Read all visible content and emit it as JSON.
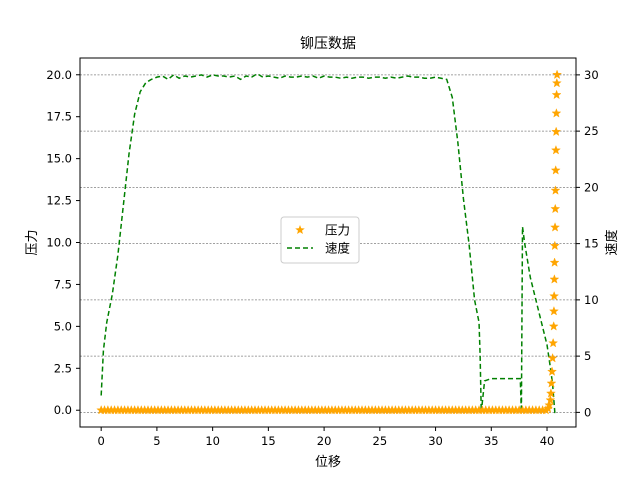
{
  "chart_data": {
    "type": "line",
    "title": "铆压数据",
    "xlabel": "位移",
    "ylabel": "压力",
    "y2label": "速度",
    "xlim": [
      -1.9,
      42.6
    ],
    "ylim": [
      -1.0,
      21.0
    ],
    "y2lim": [
      -1.3,
      31.5
    ],
    "xticks": [
      0,
      5,
      10,
      15,
      20,
      25,
      30,
      35,
      40
    ],
    "xtick_labels": [
      "0",
      "5",
      "10",
      "15",
      "20",
      "25",
      "30",
      "35",
      "40"
    ],
    "yticks": [
      0.0,
      2.5,
      5.0,
      7.5,
      10.0,
      12.5,
      15.0,
      17.5,
      20.0
    ],
    "ytick_labels": [
      "0.0",
      "2.5",
      "5.0",
      "7.5",
      "10.0",
      "12.5",
      "15.0",
      "17.5",
      "20.0"
    ],
    "y2ticks": [
      0,
      5,
      10,
      15,
      20,
      25,
      30
    ],
    "y2tick_labels": [
      "0",
      "5",
      "10",
      "15",
      "20",
      "25",
      "30"
    ],
    "grid": "horizontal-dashed-gray",
    "legend_position": "center",
    "series": [
      {
        "name": "压力",
        "axis": "left",
        "style": "star-markers",
        "color": "#FFA500",
        "x": [
          0,
          0.3,
          0.6,
          0.9,
          1.2,
          1.5,
          1.8,
          2.1,
          2.4,
          2.7,
          3.0,
          3.3,
          3.6,
          3.9,
          4.2,
          4.5,
          4.8,
          5.1,
          5.4,
          5.7,
          6.0,
          6.3,
          6.6,
          6.9,
          7.2,
          7.5,
          7.8,
          8.1,
          8.4,
          8.7,
          9.0,
          9.3,
          9.6,
          9.9,
          10.2,
          10.5,
          10.8,
          11.1,
          11.4,
          11.7,
          12.0,
          12.3,
          12.6,
          12.9,
          13.2,
          13.5,
          13.8,
          14.1,
          14.4,
          14.7,
          15.0,
          15.3,
          15.6,
          15.9,
          16.2,
          16.5,
          16.8,
          17.1,
          17.4,
          17.7,
          18.0,
          18.3,
          18.6,
          18.9,
          19.2,
          19.5,
          19.8,
          20.1,
          20.4,
          20.7,
          21.0,
          21.3,
          21.6,
          21.9,
          22.2,
          22.5,
          22.8,
          23.1,
          23.4,
          23.7,
          24.0,
          24.3,
          24.6,
          24.9,
          25.2,
          25.5,
          25.8,
          26.1,
          26.4,
          26.7,
          27.0,
          27.3,
          27.6,
          27.9,
          28.2,
          28.5,
          28.8,
          29.1,
          29.4,
          29.7,
          30.0,
          30.3,
          30.6,
          30.9,
          31.2,
          31.5,
          31.8,
          32.1,
          32.4,
          32.7,
          33.0,
          33.3,
          33.6,
          33.9,
          34.2,
          34.5,
          34.8,
          35.1,
          35.4,
          35.7,
          36.0,
          36.3,
          36.6,
          36.9,
          37.2,
          37.5,
          37.8,
          38.1,
          38.4,
          38.7,
          39.0,
          39.3,
          39.6,
          39.9,
          40.1,
          40.2,
          40.3,
          40.35,
          40.4,
          40.45,
          40.5,
          40.55,
          40.6,
          40.62,
          40.64,
          40.66,
          40.68,
          40.7,
          40.72,
          40.74,
          40.76,
          40.78,
          40.8,
          40.82,
          40.84,
          40.86,
          40.88,
          40.9
        ],
        "values": [
          0,
          0,
          0,
          0,
          0,
          0,
          0,
          0,
          0,
          0,
          0,
          0,
          0,
          0,
          0,
          0,
          0,
          0,
          0,
          0,
          0,
          0,
          0,
          0,
          0,
          0,
          0,
          0,
          0,
          0,
          0,
          0,
          0,
          0,
          0,
          0,
          0,
          0,
          0,
          0,
          0,
          0,
          0,
          0,
          0,
          0,
          0,
          0,
          0,
          0,
          0,
          0,
          0,
          0,
          0,
          0,
          0,
          0,
          0,
          0,
          0,
          0,
          0,
          0,
          0,
          0,
          0,
          0,
          0,
          0,
          0,
          0,
          0,
          0,
          0,
          0,
          0,
          0,
          0,
          0,
          0,
          0,
          0,
          0,
          0,
          0,
          0,
          0,
          0,
          0,
          0,
          0,
          0,
          0,
          0,
          0,
          0,
          0,
          0,
          0,
          0,
          0,
          0,
          0,
          0,
          0,
          0,
          0,
          0,
          0,
          0,
          0,
          0,
          0,
          0,
          0,
          0,
          0,
          0,
          0,
          0,
          0,
          0,
          0,
          0,
          0,
          0,
          0,
          0,
          0,
          0,
          0,
          0,
          0,
          0.1,
          0.3,
          0.6,
          1.0,
          1.6,
          2.3,
          3.1,
          4.0,
          5.0,
          5.9,
          6.8,
          7.8,
          8.8,
          9.8,
          10.9,
          12.0,
          13.1,
          14.3,
          15.5,
          16.6,
          17.7,
          18.8,
          19.5,
          20.0
        ]
      },
      {
        "name": "速度",
        "axis": "right",
        "style": "dashed-line",
        "color": "#008000",
        "x": [
          0,
          0.2,
          0.5,
          1.0,
          1.5,
          2.0,
          2.5,
          3.0,
          3.5,
          4.0,
          4.5,
          5.0,
          5.5,
          6.0,
          6.5,
          7.0,
          7.5,
          8.0,
          8.5,
          9.0,
          9.5,
          10.0,
          10.5,
          11.0,
          11.5,
          12.0,
          12.5,
          13.0,
          13.5,
          14.0,
          14.5,
          15.0,
          15.5,
          16.0,
          16.5,
          17.0,
          17.5,
          18.0,
          18.5,
          19.0,
          19.5,
          20.0,
          20.5,
          21.0,
          21.5,
          22.0,
          22.5,
          23.0,
          23.5,
          24.0,
          24.5,
          25.0,
          25.5,
          26.0,
          26.5,
          27.0,
          27.5,
          28.0,
          28.5,
          29.0,
          29.5,
          30.0,
          30.5,
          31.0,
          31.5,
          32.0,
          32.5,
          33.0,
          33.5,
          33.9,
          34.0,
          34.1,
          34.4,
          35.0,
          36.0,
          37.0,
          37.6,
          37.7,
          37.8,
          38.0,
          38.5,
          39.0,
          39.5,
          40.0,
          40.3,
          40.5,
          40.7,
          40.8
        ],
        "values": [
          1.5,
          5.5,
          8.0,
          10.5,
          14.0,
          18.5,
          23.0,
          26.5,
          28.5,
          29.3,
          29.6,
          29.8,
          29.9,
          29.6,
          30.0,
          29.7,
          29.9,
          29.8,
          29.9,
          30.0,
          29.8,
          30.0,
          29.9,
          29.9,
          29.8,
          29.9,
          29.6,
          29.9,
          29.8,
          30.1,
          29.8,
          29.9,
          29.8,
          29.7,
          29.9,
          29.8,
          29.8,
          29.9,
          29.8,
          29.9,
          29.7,
          29.9,
          29.8,
          29.8,
          29.7,
          29.8,
          29.7,
          29.8,
          29.8,
          29.7,
          29.8,
          29.8,
          29.7,
          29.8,
          29.7,
          29.8,
          29.9,
          29.8,
          29.8,
          29.7,
          29.7,
          29.8,
          29.7,
          29.6,
          28.0,
          24.0,
          19.0,
          15.0,
          10.0,
          8.0,
          5.0,
          0.0,
          2.8,
          3.0,
          3.0,
          3.0,
          3.0,
          0.0,
          16.5,
          15.0,
          12.0,
          10.0,
          8.0,
          6.0,
          4.0,
          2.5,
          0.0,
          0.0
        ]
      }
    ]
  }
}
